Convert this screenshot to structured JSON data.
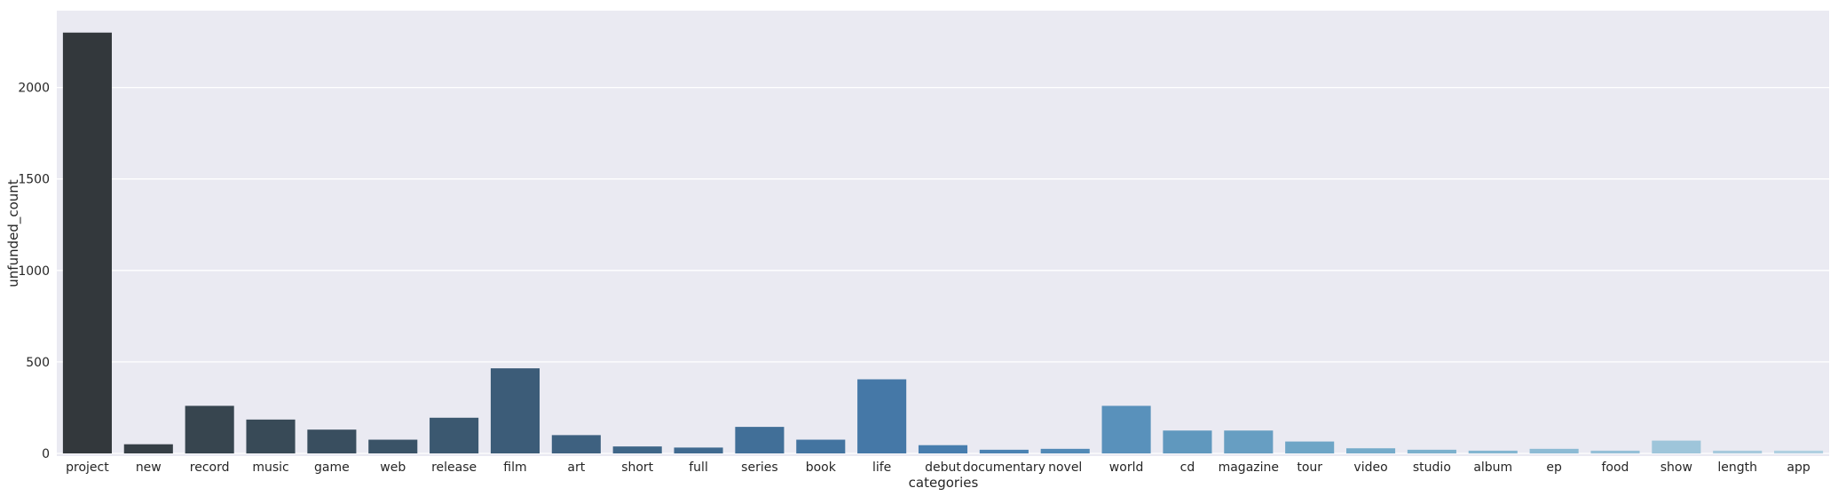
{
  "chart_data": {
    "type": "bar",
    "xlabel": "categories",
    "ylabel": "unfunded_count",
    "ylim": [
      0,
      2420
    ],
    "yticks": [
      0,
      500,
      1000,
      1500,
      2000
    ],
    "ytick_labels": [
      "0",
      "500",
      "1000",
      "1500",
      "2000"
    ],
    "grid": true,
    "background": "#eaeaf2",
    "categories": [
      "project",
      "new",
      "record",
      "music",
      "game",
      "web",
      "release",
      "film",
      "art",
      "short",
      "full",
      "series",
      "book",
      "life",
      "debut",
      "documentary",
      "novel",
      "world",
      "cd",
      "magazine",
      "tour",
      "video",
      "studio",
      "album",
      "ep",
      "food",
      "show",
      "length",
      "app"
    ],
    "values": [
      2300,
      50,
      260,
      185,
      130,
      75,
      195,
      465,
      100,
      38,
      32,
      145,
      75,
      405,
      45,
      20,
      25,
      260,
      125,
      125,
      65,
      28,
      20,
      15,
      25,
      15,
      70,
      15,
      15
    ],
    "colors": [
      "#33383c",
      "#363f46",
      "#37454f",
      "#384a57",
      "#394e5f",
      "#3a5367",
      "#3b5870",
      "#3c5c78",
      "#3e6180",
      "#3f6688",
      "#406a90",
      "#416f98",
      "#4374a0",
      "#4578a7",
      "#477dae",
      "#4b83b3",
      "#528ab7",
      "#5991bb",
      "#6098be",
      "#679ec2",
      "#6ea5c6",
      "#75abca",
      "#7cb1cd",
      "#84b6d1",
      "#8dbbd4",
      "#95c0d7",
      "#9ec5da",
      "#a7cadd",
      "#b0d0e1"
    ]
  }
}
